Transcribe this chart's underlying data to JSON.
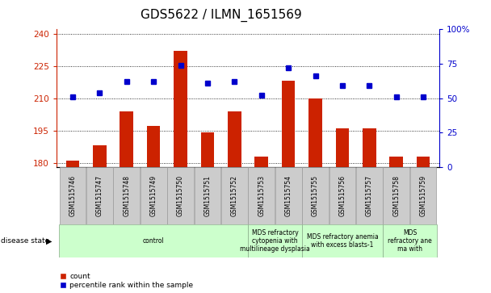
{
  "title": "GDS5622 / ILMN_1651569",
  "samples": [
    "GSM1515746",
    "GSM1515747",
    "GSM1515748",
    "GSM1515749",
    "GSM1515750",
    "GSM1515751",
    "GSM1515752",
    "GSM1515753",
    "GSM1515754",
    "GSM1515755",
    "GSM1515756",
    "GSM1515757",
    "GSM1515758",
    "GSM1515759"
  ],
  "counts": [
    181,
    188,
    204,
    197,
    232,
    194,
    204,
    183,
    218,
    210,
    196,
    196,
    183,
    183
  ],
  "percentile_ranks": [
    51,
    54,
    62,
    62,
    74,
    61,
    62,
    52,
    72,
    66,
    59,
    59,
    51,
    51
  ],
  "ylim_left": [
    178,
    242
  ],
  "ylim_right": [
    0,
    100
  ],
  "yticks_left": [
    180,
    195,
    210,
    225,
    240
  ],
  "yticks_right": [
    0,
    25,
    50,
    75,
    100
  ],
  "bar_color": "#cc2200",
  "dot_color": "#0000cc",
  "bar_width": 0.5,
  "disease_groups": [
    {
      "label": "control",
      "start": 0,
      "end": 7
    },
    {
      "label": "MDS refractory\ncytopenia with\nmultilineage dysplasia",
      "start": 7,
      "end": 9
    },
    {
      "label": "MDS refractory anemia\nwith excess blasts-1",
      "start": 9,
      "end": 12
    },
    {
      "label": "MDS\nrefractory ane\nma with",
      "start": 12,
      "end": 14
    }
  ],
  "legend_count_label": "count",
  "legend_pct_label": "percentile rank within the sample",
  "xlabel_disease": "disease state",
  "title_fontsize": 11,
  "bar_label_fontsize": 5.5,
  "disease_fontsize": 5.5,
  "axis_fontsize": 7.5
}
